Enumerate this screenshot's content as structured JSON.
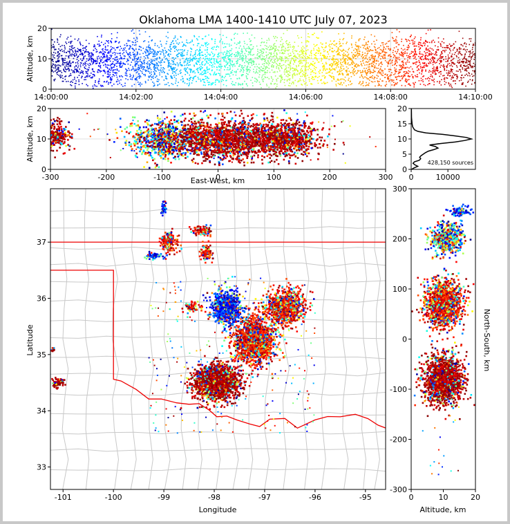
{
  "title": "Oklahoma LMA 1400-1410 UTC July 07, 2023",
  "chart_data": [
    {
      "panel": "altitude-vs-time",
      "type": "scatter",
      "ylabel": "Altitude, km",
      "xlim": [
        "14:00:00",
        "14:10:00"
      ],
      "ylim": [
        0,
        20
      ],
      "xticks": [
        "14:00:00",
        "14:02:00",
        "14:04:00",
        "14:06:00",
        "14:08:00",
        "14:10:00"
      ],
      "yticks": [
        0,
        10,
        20
      ],
      "color_by": "time",
      "colormap": "jet"
    },
    {
      "panel": "altitude-vs-east-west",
      "type": "scatter",
      "xlabel": "East-West, km",
      "ylabel": "Altitude, km",
      "xlim": [
        -300,
        300
      ],
      "ylim": [
        0,
        20
      ],
      "xticks": [
        -300,
        -200,
        -100,
        0,
        100,
        200,
        300
      ],
      "yticks": [
        0,
        10,
        20
      ],
      "clusters": [
        {
          "x_center": -290,
          "x_spread": 12,
          "alt_center": 11,
          "alt_spread": 4,
          "dominant": "dark-red"
        },
        {
          "x_center": -100,
          "x_spread": 30,
          "alt_center": 10,
          "alt_spread": 6,
          "dominant": "mixed"
        },
        {
          "x_center": 5,
          "x_spread": 45,
          "alt_center": 10,
          "alt_spread": 6,
          "dominant": "dark-red"
        },
        {
          "x_center": 110,
          "x_spread": 35,
          "alt_center": 10,
          "alt_spread": 5,
          "dominant": "dark-red"
        }
      ]
    },
    {
      "panel": "altitude-histogram",
      "type": "line",
      "xlim": [
        0,
        17500
      ],
      "ylim": [
        0,
        20
      ],
      "xticks": [
        0,
        10000
      ],
      "yticks": [
        0,
        5,
        10,
        15,
        20
      ],
      "altitude_km": [
        0,
        0.5,
        1,
        1.5,
        2,
        2.5,
        3,
        3.5,
        4,
        4.5,
        5,
        5.5,
        6,
        6.5,
        7,
        7.5,
        8,
        8.5,
        9,
        9.5,
        10,
        10.5,
        11,
        11.5,
        12,
        12.5,
        13,
        14,
        15,
        17,
        20
      ],
      "counts": [
        100,
        800,
        1800,
        1000,
        500,
        900,
        2200,
        2600,
        2300,
        2700,
        3300,
        3900,
        4700,
        6200,
        7300,
        6600,
        5000,
        8000,
        12000,
        14600,
        16400,
        15000,
        12000,
        8600,
        4000,
        1800,
        900,
        400,
        250,
        100,
        50
      ],
      "annotation": "428,150 sources"
    },
    {
      "panel": "plan-view",
      "type": "scatter",
      "xlabel": "Longitude",
      "ylabel": "Latitude",
      "xlim": [
        -101.25,
        -94.6
      ],
      "ylim": [
        32.6,
        37.95
      ],
      "xticks": [
        -101,
        -100,
        -99,
        -98,
        -97,
        -96,
        -95
      ],
      "yticks": [
        33,
        34,
        35,
        36,
        37
      ],
      "clusters": [
        {
          "lon": -97.95,
          "lat": 34.5,
          "spread_lon": 0.35,
          "spread_lat": 0.25,
          "dominant": "dark-red"
        },
        {
          "lon": -97.2,
          "lat": 35.25,
          "spread_lon": 0.35,
          "spread_lat": 0.35,
          "dominant": "red"
        },
        {
          "lon": -96.6,
          "lat": 35.85,
          "spread_lon": 0.3,
          "spread_lat": 0.25,
          "dominant": "red"
        },
        {
          "lon": -97.75,
          "lat": 35.85,
          "spread_lon": 0.25,
          "spread_lat": 0.25,
          "dominant": "blue"
        },
        {
          "lon": -98.9,
          "lat": 37.0,
          "spread_lon": 0.15,
          "spread_lat": 0.15,
          "dominant": "red"
        },
        {
          "lon": -98.25,
          "lat": 37.2,
          "spread_lon": 0.15,
          "spread_lat": 0.08,
          "dominant": "red"
        },
        {
          "lon": -98.15,
          "lat": 36.8,
          "spread_lon": 0.1,
          "spread_lat": 0.12,
          "dominant": "red"
        },
        {
          "lon": -99.0,
          "lat": 37.6,
          "spread_lon": 0.05,
          "spread_lat": 0.1,
          "dominant": "blue"
        },
        {
          "lon": -99.2,
          "lat": 36.75,
          "spread_lon": 0.15,
          "spread_lat": 0.05,
          "dominant": "blue"
        },
        {
          "lon": -98.45,
          "lat": 35.85,
          "spread_lon": 0.15,
          "spread_lat": 0.08,
          "dominant": "red"
        },
        {
          "lon": -101.1,
          "lat": 34.5,
          "spread_lon": 0.08,
          "spread_lat": 0.08,
          "dominant": "dark-red"
        },
        {
          "lon": -101.2,
          "lat": 35.07,
          "spread_lon": 0.03,
          "spread_lat": 0.03,
          "dominant": "dark-red"
        }
      ]
    },
    {
      "panel": "north-south-vs-altitude",
      "type": "scatter",
      "xlabel": "Altitude, km",
      "ylabel": "North-South, km",
      "xlim": [
        0,
        20
      ],
      "ylim": [
        -300,
        300
      ],
      "xticks": [
        0,
        10,
        20
      ],
      "yticks": [
        -300,
        -200,
        -100,
        0,
        100,
        200,
        300
      ],
      "clusters": [
        {
          "ns_center": 200,
          "ns_spread": 25,
          "alt_center": 11,
          "alt_spread": 4,
          "dominant": "mixed"
        },
        {
          "ns_center": 255,
          "ns_spread": 8,
          "alt_center": 15,
          "alt_spread": 3,
          "dominant": "blue"
        },
        {
          "ns_center": 70,
          "ns_spread": 40,
          "alt_center": 10,
          "alt_spread": 5,
          "dominant": "red"
        },
        {
          "ns_center": -80,
          "ns_spread": 40,
          "alt_center": 10,
          "alt_spread": 5,
          "dominant": "dark-red"
        }
      ]
    }
  ],
  "boundary_color": "#ee0000",
  "county_line_color": "#c8c8c8"
}
